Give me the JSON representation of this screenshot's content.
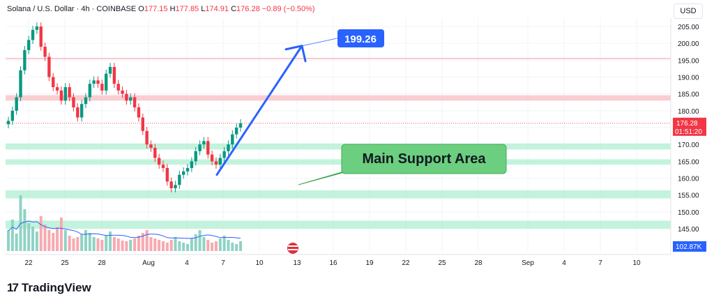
{
  "header": {
    "symbol": "Solana / U.S. Dollar · 4h · COINBASE",
    "o_label": "O",
    "o_value": "177.15",
    "h_label": "H",
    "h_value": "177.85",
    "l_label": "L",
    "l_value": "174.91",
    "c_label": "C",
    "c_value": "176.28",
    "change": "−0.89 (−0.50%)"
  },
  "currency_button": "USD",
  "brand": "TradingView",
  "colors": {
    "up": "#089981",
    "down": "#f23645",
    "arrow": "#2962ff",
    "support_fill": "#b9f1d6",
    "resistance_fill": "#f9c8cc"
  },
  "chart_data": {
    "type": "candlestick",
    "symbol": "SOL/USD",
    "interval": "4h",
    "y_ticks": [
      "205.00",
      "200.00",
      "195.00",
      "190.00",
      "185.00",
      "180.00",
      "175.00",
      "170.00",
      "165.00",
      "160.00",
      "155.00",
      "150.00",
      "145.00"
    ],
    "x_ticks": [
      "22",
      "25",
      "28",
      "Aug",
      "4",
      "7",
      "10",
      "13",
      "16",
      "19",
      "22",
      "25",
      "28",
      "Sep",
      "4",
      "7",
      "10"
    ],
    "ylim": [
      142,
      208
    ],
    "last_price": "176.28",
    "countdown": "01:51:20",
    "volume_label": "102.87K",
    "target_label": "199.26",
    "annotation": "Main Support Area",
    "resistance_line": 195.5,
    "resistance_zone": [
      183,
      184.6
    ],
    "support_zones": [
      [
        168.5,
        170.3
      ],
      [
        164,
        165.6
      ],
      [
        154,
        156.4
      ],
      [
        145,
        147.4
      ]
    ],
    "close_path": [
      177,
      180,
      184,
      192,
      198,
      201,
      204,
      205,
      199,
      196,
      190,
      187,
      186,
      183,
      187,
      184,
      181,
      178,
      182,
      184,
      188,
      189,
      188,
      186,
      191,
      193,
      188,
      186,
      185,
      183,
      184,
      181,
      178,
      174,
      170,
      169,
      166,
      164,
      163,
      159,
      157,
      158,
      161,
      162,
      163,
      165,
      168,
      170,
      171,
      167,
      165,
      164,
      166,
      168,
      170,
      173,
      175,
      176.28
    ],
    "volume_bars": [
      30,
      45,
      25,
      80,
      60,
      40,
      35,
      28,
      50,
      38,
      30,
      26,
      34,
      48,
      30,
      22,
      18,
      20,
      24,
      30,
      26,
      20,
      18,
      16,
      22,
      28,
      20,
      18,
      15,
      14,
      16,
      18,
      22,
      26,
      30,
      20,
      18,
      16,
      14,
      12,
      16,
      20,
      14,
      12,
      10,
      18,
      24,
      30,
      20,
      16,
      12,
      14,
      18,
      22,
      16,
      12,
      10,
      14
    ]
  }
}
